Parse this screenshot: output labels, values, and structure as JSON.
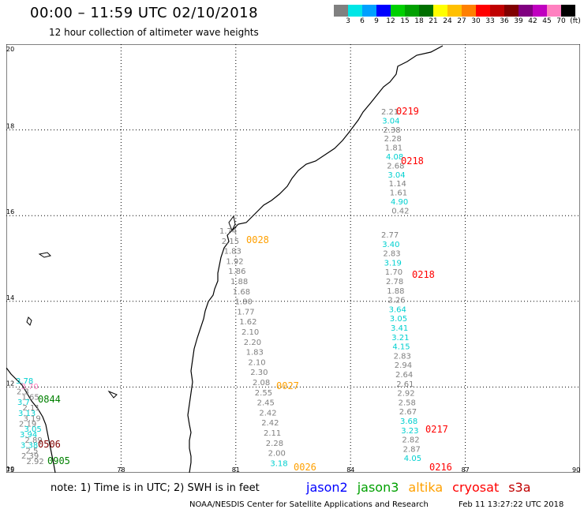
{
  "header": {
    "title": "00:00 – 11:59 UTC 02/10/2018",
    "subtitle": "12 hour collection of altimeter wave heights"
  },
  "color_scale": {
    "labels": [
      "3",
      "6",
      "9",
      "12",
      "15",
      "18",
      "21",
      "24",
      "27",
      "30",
      "33",
      "36",
      "39",
      "42",
      "45",
      "70",
      "(ft)"
    ],
    "colors": [
      "#808080",
      "#00e6e6",
      "#00a0ff",
      "#0000ff",
      "#00d000",
      "#00a000",
      "#007000",
      "#ffff00",
      "#ffc000",
      "#ff8000",
      "#ff0000",
      "#c00000",
      "#800000",
      "#800080",
      "#c000c0",
      "#ff80c0",
      "#000000"
    ]
  },
  "axes": {
    "lat_labels": [
      "20",
      "18",
      "16",
      "14",
      "12",
      "10"
    ],
    "lon_labels": [
      "75",
      "78",
      "81",
      "84",
      "87",
      "90"
    ]
  },
  "tracks": [
    {
      "name": "track-0219-0218-north",
      "satellite": "cryosat",
      "values": [
        {
          "v": "2.21",
          "c": "#808080"
        },
        {
          "v": "3.04",
          "c": "#00d0d0"
        },
        {
          "v": "2.38",
          "c": "#808080"
        },
        {
          "v": "2.28",
          "c": "#808080"
        },
        {
          "v": "1.81",
          "c": "#808080"
        },
        {
          "v": "4.08",
          "c": "#00d0d0"
        },
        {
          "v": "2.68",
          "c": "#808080"
        },
        {
          "v": "3.04",
          "c": "#00d0d0"
        },
        {
          "v": "1.14",
          "c": "#808080"
        },
        {
          "v": "1.61",
          "c": "#808080"
        },
        {
          "v": "4.90",
          "c": "#00d0d0"
        },
        {
          "v": "0.42",
          "c": "#808080"
        }
      ],
      "time_labels": [
        {
          "t": "0219",
          "c": "#ff0000"
        },
        {
          "t": "0218",
          "c": "#ff0000"
        }
      ]
    },
    {
      "name": "track-0218-0216-south",
      "satellite": "cryosat",
      "values": [
        {
          "v": "2.77",
          "c": "#808080"
        },
        {
          "v": "3.40",
          "c": "#00d0d0"
        },
        {
          "v": "2.83",
          "c": "#808080"
        },
        {
          "v": "3.19",
          "c": "#00d0d0"
        },
        {
          "v": "1.70",
          "c": "#808080"
        },
        {
          "v": "2.78",
          "c": "#808080"
        },
        {
          "v": "1.88",
          "c": "#808080"
        },
        {
          "v": "2.26",
          "c": "#808080"
        },
        {
          "v": "3.64",
          "c": "#00d0d0"
        },
        {
          "v": "3.05",
          "c": "#00d0d0"
        },
        {
          "v": "3.41",
          "c": "#00d0d0"
        },
        {
          "v": "3.21",
          "c": "#00d0d0"
        },
        {
          "v": "4.15",
          "c": "#00d0d0"
        },
        {
          "v": "2.83",
          "c": "#808080"
        },
        {
          "v": "2.94",
          "c": "#808080"
        },
        {
          "v": "2.64",
          "c": "#808080"
        },
        {
          "v": "2.61",
          "c": "#808080"
        },
        {
          "v": "2.92",
          "c": "#808080"
        },
        {
          "v": "2.58",
          "c": "#808080"
        },
        {
          "v": "2.67",
          "c": "#808080"
        },
        {
          "v": "3.68",
          "c": "#00d0d0"
        },
        {
          "v": "3.23",
          "c": "#00d0d0"
        },
        {
          "v": "2.82",
          "c": "#808080"
        },
        {
          "v": "2.87",
          "c": "#808080"
        },
        {
          "v": "4.05",
          "c": "#00d0d0"
        }
      ],
      "time_labels": [
        {
          "t": "0218",
          "c": "#ff0000"
        },
        {
          "t": "0217",
          "c": "#ff0000"
        },
        {
          "t": "0216",
          "c": "#ff0000"
        }
      ]
    },
    {
      "name": "track-0028-0026-altika",
      "satellite": "altika",
      "values": [
        {
          "v": "1.74",
          "c": "#808080"
        },
        {
          "v": "2.15",
          "c": "#808080"
        },
        {
          "v": "1.83",
          "c": "#808080"
        },
        {
          "v": "1.92",
          "c": "#808080"
        },
        {
          "v": "1.86",
          "c": "#808080"
        },
        {
          "v": "1.88",
          "c": "#808080"
        },
        {
          "v": "1.68",
          "c": "#808080"
        },
        {
          "v": "1.80",
          "c": "#808080"
        },
        {
          "v": "1.77",
          "c": "#808080"
        },
        {
          "v": "1.62",
          "c": "#808080"
        },
        {
          "v": "2.10",
          "c": "#808080"
        },
        {
          "v": "2.20",
          "c": "#808080"
        },
        {
          "v": "1.83",
          "c": "#808080"
        },
        {
          "v": "2.10",
          "c": "#808080"
        },
        {
          "v": "2.30",
          "c": "#808080"
        },
        {
          "v": "2.08",
          "c": "#808080"
        },
        {
          "v": "2.55",
          "c": "#808080"
        },
        {
          "v": "2.45",
          "c": "#808080"
        },
        {
          "v": "2.42",
          "c": "#808080"
        },
        {
          "v": "2.42",
          "c": "#808080"
        },
        {
          "v": "2.11",
          "c": "#808080"
        },
        {
          "v": "2.28",
          "c": "#808080"
        },
        {
          "v": "2.00",
          "c": "#808080"
        },
        {
          "v": "3.18",
          "c": "#00d0d0"
        }
      ],
      "time_labels": [
        {
          "t": "0028",
          "c": "#ffa000"
        },
        {
          "t": "0027",
          "c": "#ffa000"
        },
        {
          "t": "0026",
          "c": "#ffa000"
        }
      ]
    },
    {
      "name": "track-0844-0905-jason3",
      "satellite": "jason3",
      "values": [
        {
          "v": "3.78",
          "c": "#00d0d0"
        },
        {
          "v": "3.70",
          "c": "#ff80c0"
        },
        {
          "v": "2.3",
          "c": "#808080"
        },
        {
          "v": "1.65",
          "c": "#808080"
        },
        {
          "v": "3.7",
          "c": "#00d0d0"
        },
        {
          "v": "2.11",
          "c": "#808080"
        },
        {
          "v": "3.13",
          "c": "#00d0d0"
        },
        {
          "v": "3.19",
          "c": "#808080"
        },
        {
          "v": "2.19",
          "c": "#808080"
        },
        {
          "v": "3.05",
          "c": "#00d0d0"
        },
        {
          "v": "3.94",
          "c": "#00d0d0"
        },
        {
          "v": "2.89",
          "c": "#808080"
        },
        {
          "v": "3.38",
          "c": "#00d0d0"
        },
        {
          "v": "2.5",
          "c": "#808080"
        },
        {
          "v": "2.39",
          "c": "#808080"
        },
        {
          "v": "2.92",
          "c": "#808080"
        }
      ],
      "time_labels": [
        {
          "t": "0844",
          "c": "#008000"
        },
        {
          "t": "0506",
          "c": "#800000"
        },
        {
          "t": "0905",
          "c": "#008000"
        }
      ]
    }
  ],
  "footer": {
    "note": "note: 1) Time is in UTC; 2) SWH is in feet",
    "satellites": [
      {
        "name": "jason2",
        "color": "#0000ff"
      },
      {
        "name": "jason3",
        "color": "#00a000"
      },
      {
        "name": "altika",
        "color": "#ffa000"
      },
      {
        "name": "cryosat",
        "color": "#ff0000"
      },
      {
        "name": "s3a",
        "color": "#c00000"
      }
    ],
    "credit": "NOAA/NESDIS Center for Satellite Applications and Research",
    "timestamp": "Feb 11 13:27:22 UTC 2018"
  }
}
